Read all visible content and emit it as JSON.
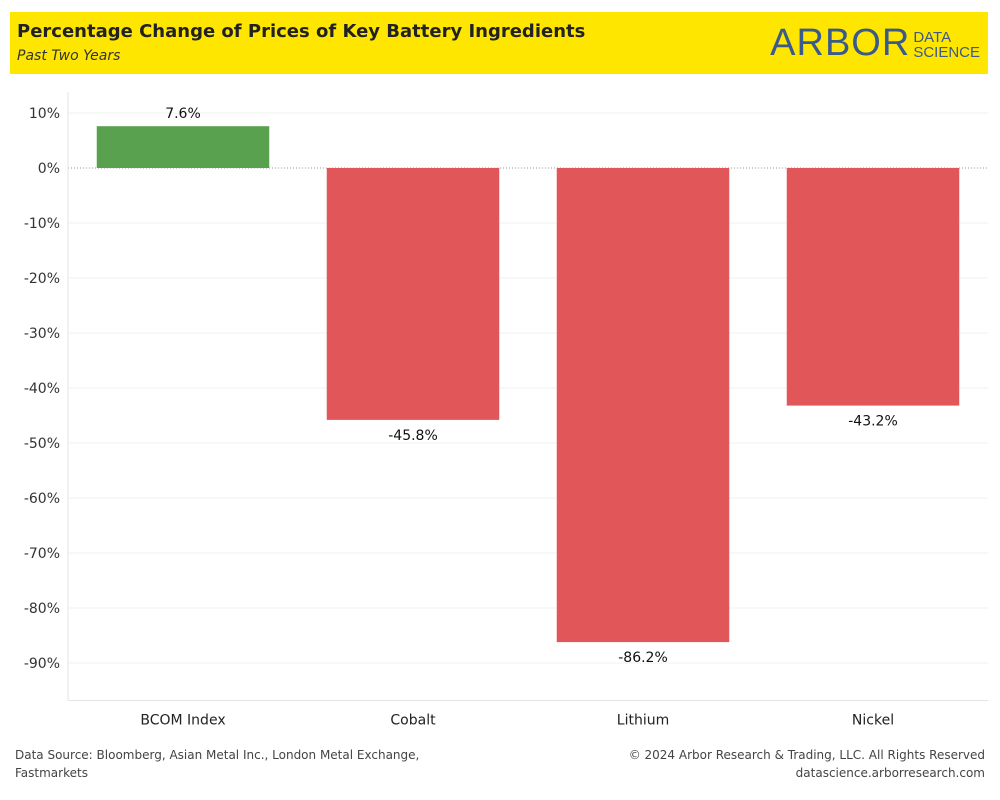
{
  "header": {
    "title": "Percentage Change of Prices of Key Battery Ingredients",
    "subtitle": "Past Two Years",
    "logo_main": "ARBOR",
    "logo_sub_1": "DATA",
    "logo_sub_2": "SCIENCE"
  },
  "chart_data": {
    "type": "bar",
    "title": "Percentage Change of Prices of Key Battery Ingredients",
    "subtitle": "Past Two Years",
    "categories": [
      "BCOM Index",
      "Cobalt",
      "Lithium",
      "Nickel"
    ],
    "values": [
      7.6,
      -45.8,
      -86.2,
      -43.2
    ],
    "value_labels": [
      "7.6%",
      "-45.8%",
      "-86.2%",
      "-43.2%"
    ],
    "ylim": [
      -95,
      12
    ],
    "yticks": [
      10,
      0,
      -10,
      -20,
      -30,
      -40,
      -50,
      -60,
      -70,
      -80,
      -90
    ],
    "ytick_labels": [
      "10%",
      "0%",
      "-10%",
      "-20%",
      "-30%",
      "-40%",
      "-50%",
      "-60%",
      "-70%",
      "-80%",
      "-90%"
    ],
    "positive_color": "#59a14f",
    "negative_color": "#e15759",
    "grid": true,
    "legend": "none"
  },
  "footer": {
    "source": "Data Source: Bloomberg, Asian Metal Inc., London Metal Exchange, Fastmarkets",
    "copyright": "© 2024 Arbor Research & Trading, LLC. All Rights Reserved",
    "url": "datascience.arborresearch.com"
  }
}
